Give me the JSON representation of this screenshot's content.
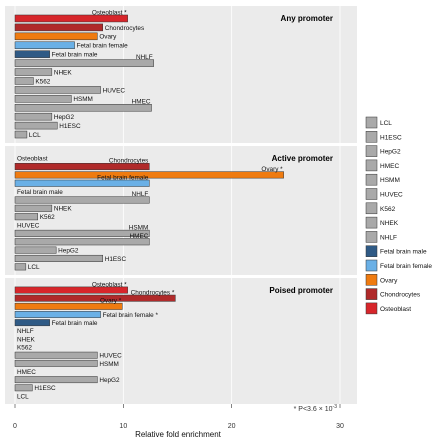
{
  "chart_data": {
    "type": "bar",
    "orientation": "horizontal",
    "xlabel": "Relative fold enrichment",
    "xlim": [
      0,
      30
    ],
    "xticks": [
      0,
      10,
      20,
      30
    ],
    "footnote": "* P<3.6 × 10",
    "footnote_exponent": "-3",
    "colors": {
      "LCL": "#a9a9a9",
      "H1ESC": "#a9a9a9",
      "HepG2": "#a9a9a9",
      "HMEC": "#a9a9a9",
      "HSMM": "#a9a9a9",
      "HUVEC": "#a9a9a9",
      "K562": "#a9a9a9",
      "NHEK": "#a9a9a9",
      "NHLF": "#a9a9a9",
      "Fetal brain male": "#2f5a85",
      "Fetal brain female": "#6ab0e6",
      "Ovary": "#ef7b10",
      "Chondrocytes": "#b02a2a",
      "Osteoblast": "#d7262b"
    },
    "legend": {
      "position": "right",
      "entries": [
        "LCL",
        "H1ESC",
        "HepG2",
        "HMEC",
        "HSMM",
        "HUVEC",
        "K562",
        "NHEK",
        "NHLF",
        "Fetal brain male",
        "Fetal brain female",
        "Ovary",
        "Chondrocytes",
        "Osteoblast"
      ]
    },
    "panels": [
      {
        "title": "Any promoter",
        "categories": [
          "Osteoblast",
          "Chondrocytes",
          "Ovary",
          "Fetal brain female",
          "Fetal brain male",
          "NHLF",
          "NHEK",
          "K562",
          "HUVEC",
          "HSMM",
          "HMEC",
          "HepG2",
          "H1ESC",
          "LCL"
        ],
        "values": [
          10.4,
          8.1,
          7.6,
          5.5,
          3.2,
          12.8,
          3.4,
          1.7,
          7.9,
          5.2,
          12.6,
          3.4,
          3.9,
          1.1
        ],
        "significant": [
          true,
          false,
          false,
          false,
          false,
          false,
          false,
          false,
          false,
          false,
          false,
          false,
          false,
          false
        ]
      },
      {
        "title": "Active promoter",
        "categories": [
          "Osteoblast",
          "Chondrocytes",
          "Ovary",
          "Fetal brain female",
          "Fetal brain male",
          "NHLF",
          "NHEK",
          "K562",
          "HUVEC",
          "HSMM",
          "HMEC",
          "HepG2",
          "H1ESC",
          "LCL"
        ],
        "values": [
          0,
          12.4,
          24.8,
          12.4,
          0,
          12.4,
          3.4,
          2.1,
          0,
          12.4,
          12.4,
          3.8,
          8.1,
          1.0
        ],
        "significant": [
          false,
          false,
          true,
          false,
          false,
          false,
          false,
          false,
          false,
          false,
          false,
          false,
          false,
          false
        ]
      },
      {
        "title": "Poised promoter",
        "categories": [
          "Osteoblast",
          "Chondrocytes",
          "Ovary",
          "Fetal brain female",
          "Fetal brain male",
          "NHLF",
          "NHEK",
          "K562",
          "HUVEC",
          "HSMM",
          "HMEC",
          "HepG2",
          "H1ESC",
          "LCL"
        ],
        "values": [
          10.4,
          14.8,
          9.9,
          7.9,
          3.2,
          0,
          0,
          0,
          7.6,
          7.6,
          0,
          7.6,
          1.6,
          0
        ],
        "significant": [
          true,
          true,
          true,
          true,
          false,
          false,
          false,
          false,
          false,
          false,
          false,
          false,
          false,
          false
        ]
      }
    ]
  }
}
